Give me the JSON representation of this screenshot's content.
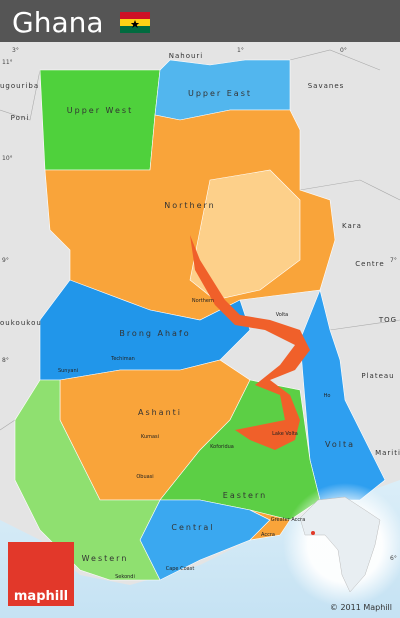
{
  "header": {
    "title": "Ghana"
  },
  "regions": [
    {
      "label": "Upper West"
    },
    {
      "label": "Upper East"
    },
    {
      "label": "Northern"
    },
    {
      "label": "Brong Ahafo"
    },
    {
      "label": "Volta"
    },
    {
      "label": "Ashanti"
    },
    {
      "label": "Eastern"
    },
    {
      "label": "Central"
    },
    {
      "label": "Western"
    },
    {
      "label": "Greater Accra"
    }
  ],
  "neighbors": [
    {
      "label": "Nahouri"
    },
    {
      "label": "Savanes"
    },
    {
      "label": "Kara"
    },
    {
      "label": "Centre"
    },
    {
      "label": "TOG"
    },
    {
      "label": "Plateau"
    },
    {
      "label": "Mariti"
    },
    {
      "label": "Boukoukou"
    },
    {
      "label": "Poni"
    },
    {
      "label": "Bougouriba"
    }
  ],
  "cities": [
    {
      "label": "Northern"
    },
    {
      "label": "Sunyani"
    },
    {
      "label": "Techiman"
    },
    {
      "label": "Kumasi"
    },
    {
      "label": "Obuasi"
    },
    {
      "label": "Koforidua"
    },
    {
      "label": "Ho"
    },
    {
      "label": "Accra"
    },
    {
      "label": "Cape Coast"
    },
    {
      "label": "Sekondi"
    },
    {
      "label": "Volta"
    },
    {
      "label": "Lake Volta"
    }
  ],
  "coordinates": [
    {
      "label": "3°"
    },
    {
      "label": "1°"
    },
    {
      "label": "0°"
    },
    {
      "label": "11°"
    },
    {
      "label": "10°"
    },
    {
      "label": "9°"
    },
    {
      "label": "8°"
    },
    {
      "label": "7°"
    },
    {
      "label": "6°"
    }
  ],
  "logo": "maphill",
  "copyright": "© 2011 Maphill"
}
